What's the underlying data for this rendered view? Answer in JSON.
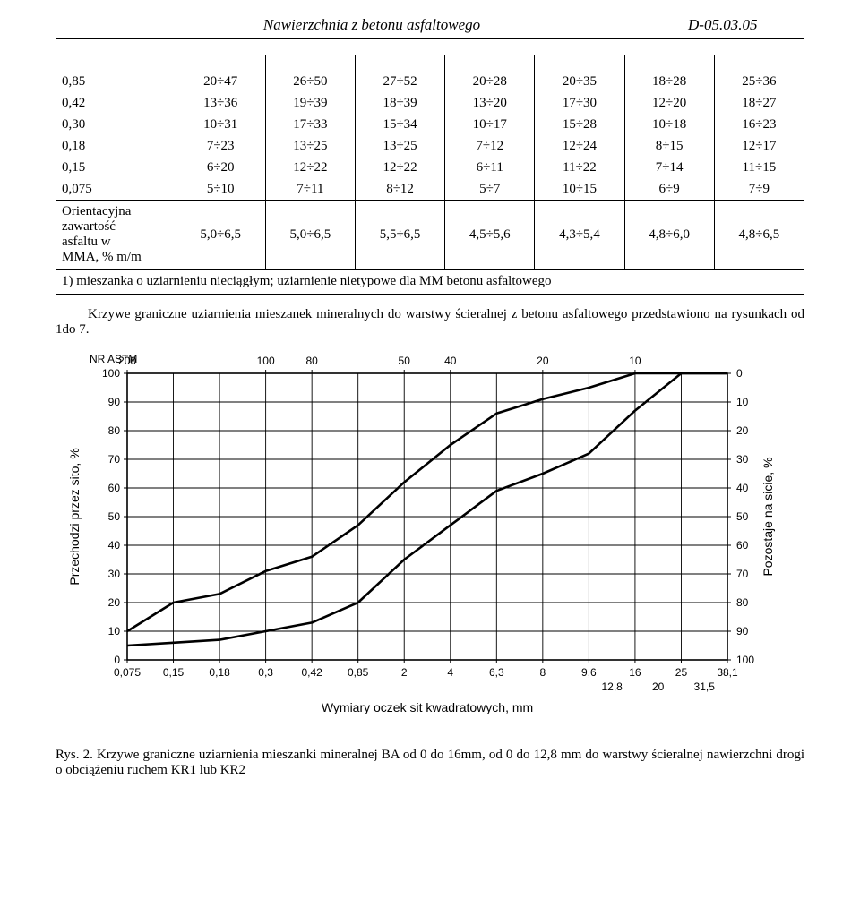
{
  "header": {
    "title": "Nawierzchnia z betonu asfaltowego",
    "code": "D-05.03.05"
  },
  "table": {
    "col_widths_pct": [
      16,
      12,
      12,
      12,
      12,
      12,
      12,
      12
    ],
    "rows": [
      {
        "label": "0,85",
        "cells": [
          "20÷47",
          "26÷50",
          "27÷52",
          "20÷28",
          "20÷35",
          "18÷28",
          "25÷36"
        ]
      },
      {
        "label": "0,42",
        "cells": [
          "13÷36",
          "19÷39",
          "18÷39",
          "13÷20",
          "17÷30",
          "12÷20",
          "18÷27"
        ]
      },
      {
        "label": "0,30",
        "cells": [
          "10÷31",
          "17÷33",
          "15÷34",
          "10÷17",
          "15÷28",
          "10÷18",
          "16÷23"
        ]
      },
      {
        "label": "0,18",
        "cells": [
          "7÷23",
          "13÷25",
          "13÷25",
          "7÷12",
          "12÷24",
          "8÷15",
          "12÷17"
        ]
      },
      {
        "label": "0,15",
        "cells": [
          "6÷20",
          "12÷22",
          "12÷22",
          "6÷11",
          "11÷22",
          "7÷14",
          "11÷15"
        ]
      },
      {
        "label": "0,075",
        "cells": [
          "5÷10",
          "7÷11",
          "8÷12",
          "5÷7",
          "10÷15",
          "6÷9",
          "7÷9"
        ]
      }
    ],
    "asphalt_row": {
      "label_lines": [
        "Orientacyjna",
        "zawartość",
        "asfaltu w",
        "MMA, % m/m"
      ],
      "cells": [
        "5,0÷6,5",
        "5,0÷6,5",
        "5,5÷6,5",
        "4,5÷5,6",
        "4,3÷5,4",
        "4,8÷6,0",
        "4,8÷6,5"
      ]
    },
    "footnote": "1) mieszanka o uziarnieniu nieciągłym; uziarnienie nietypowe dla MM betonu asfaltowego"
  },
  "paragraph": "Krzywe graniczne uziarnienia mieszanek mineralnych do warstwy ścieralnej z betonu asfaltowego przedstawiono na rysunkach od 1do 7.",
  "chart": {
    "background_color": "#ffffff",
    "grid_color": "#000000",
    "line_color": "#000000",
    "line_width": 2.6,
    "astm_label": "NR ASTM",
    "astm_ticks": [
      {
        "label": "200",
        "x_idx": 0
      },
      {
        "label": "100",
        "x_idx": 3
      },
      {
        "label": "80",
        "x_idx": 4
      },
      {
        "label": "50",
        "x_idx": 6
      },
      {
        "label": "40",
        "x_idx": 7
      },
      {
        "label": "20",
        "x_idx": 9
      },
      {
        "label": "10",
        "x_idx": 11
      }
    ],
    "y_label_left": "Przechodzi przez sito, %",
    "y_label_right": "Pozostaje na sicie, %",
    "y_ticks_left": [
      0,
      10,
      20,
      30,
      40,
      50,
      60,
      70,
      80,
      90,
      100
    ],
    "y_ticks_right": [
      100,
      90,
      80,
      70,
      60,
      50,
      40,
      30,
      20,
      10,
      0
    ],
    "x_label": "Wymiary oczek sit kwadratowych, mm",
    "x_ticks": [
      "0,075",
      "0,15",
      "0,18",
      "0,3",
      "0,42",
      "0,85",
      "2",
      "4",
      "6,3",
      "8",
      "9,6",
      "16",
      "25",
      "38,1"
    ],
    "x_ticks_row2": [
      {
        "label": "12,8",
        "after_idx": 10
      },
      {
        "label": "20",
        "after_idx": 11
      },
      {
        "label": "31,5",
        "after_idx": 12
      }
    ],
    "series": [
      {
        "name": "lower",
        "y": [
          5,
          6,
          7,
          10,
          13,
          20,
          35,
          47,
          59,
          65,
          72,
          87,
          100,
          100
        ]
      },
      {
        "name": "upper",
        "y": [
          10,
          20,
          23,
          31,
          36,
          47,
          62,
          75,
          86,
          91,
          95,
          100,
          100,
          100
        ]
      }
    ]
  },
  "caption": {
    "lead": "Rys. 2.",
    "text": "Krzywe graniczne uziarnienia mieszanki mineralnej BA od 0 do 16mm, od 0 do 12,8 mm  do warstwy ścieralnej nawierzchni drogi o obciążeniu ruchem  KR1 lub KR2"
  }
}
